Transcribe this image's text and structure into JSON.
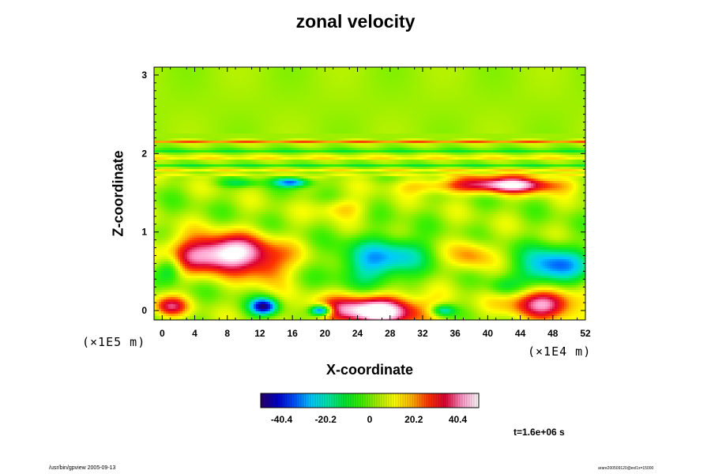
{
  "chart_data": {
    "type": "heatmap",
    "title": "zonal velocity",
    "xlabel": "X-coordinate",
    "ylabel": "Z-coordinate",
    "x_unit": "(×1E4 m)",
    "y_unit": "(×1E5 m)",
    "xlim": [
      -1,
      52
    ],
    "ylim": [
      -0.12,
      3.1
    ],
    "x_ticks": [
      "0",
      "4",
      "8",
      "12",
      "16",
      "20",
      "24",
      "28",
      "32",
      "36",
      "40",
      "44",
      "48",
      "52"
    ],
    "y_ticks": [
      "0",
      "1",
      "2",
      "3"
    ],
    "colorbar": {
      "range": [
        -50,
        50
      ],
      "ticks": [
        "-40.4",
        "-20.2",
        "0",
        "20.2",
        "40.4"
      ],
      "colors": [
        "#280064",
        "#0000c8",
        "#0050ff",
        "#00c8ff",
        "#00e6aa",
        "#00e632",
        "#3cf000",
        "#aaf000",
        "#ffff00",
        "#ffb400",
        "#ff3200",
        "#dc0032",
        "#ff96c8",
        "#ffffff"
      ]
    },
    "background_value": 3,
    "features": [
      {
        "x": 7.5,
        "z": 0.72,
        "rx": 6.5,
        "rz": 0.24,
        "value": 52
      },
      {
        "x": 26,
        "z": 0.0,
        "rx": 6.5,
        "rz": 0.2,
        "value": 52
      },
      {
        "x": 42.5,
        "z": 1.6,
        "rx": 6.5,
        "rz": 0.11,
        "value": 44
      },
      {
        "x": 47,
        "z": 0.1,
        "rx": 4.5,
        "rz": 0.2,
        "value": 40
      },
      {
        "x": 1,
        "z": 0.05,
        "rx": 2.2,
        "rz": 0.13,
        "value": 30
      },
      {
        "x": 33,
        "z": 1.58,
        "rx": 5,
        "rz": 0.1,
        "value": 12
      },
      {
        "x": 22,
        "z": 1.3,
        "rx": 3,
        "rz": 0.13,
        "value": 14
      },
      {
        "x": 38,
        "z": 0.7,
        "rx": 2.5,
        "rz": 0.2,
        "value": 18
      },
      {
        "x": 13,
        "z": 0.5,
        "rx": 2.5,
        "rz": 0.2,
        "value": 16
      },
      {
        "x": 48,
        "z": 0.55,
        "rx": 4,
        "rz": 0.25,
        "value": -38
      },
      {
        "x": 26,
        "z": 0.6,
        "rx": 4.5,
        "rz": 0.3,
        "value": -28
      },
      {
        "x": 12.5,
        "z": 0.05,
        "rx": 1.7,
        "rz": 0.11,
        "value": -48
      },
      {
        "x": 19.5,
        "z": 0.0,
        "rx": 1.3,
        "rz": 0.07,
        "value": -52
      },
      {
        "x": 16,
        "z": 1.63,
        "rx": 2.2,
        "rz": 0.06,
        "value": -34
      },
      {
        "x": 9.5,
        "z": 1.62,
        "rx": 2.5,
        "rz": 0.05,
        "value": -14
      },
      {
        "x": 34.5,
        "z": 0.0,
        "rx": 1.5,
        "rz": 0.08,
        "value": -30
      },
      {
        "x": 30,
        "z": 0.75,
        "rx": 3,
        "rz": 0.2,
        "value": -14
      },
      {
        "x": 1,
        "z": 0.55,
        "rx": 1.5,
        "rz": 0.18,
        "value": -20
      },
      {
        "x": 42,
        "z": 0.3,
        "rx": 2,
        "rz": 0.12,
        "value": -12
      }
    ],
    "bands": [
      {
        "z": 2.15,
        "hw": 0.02,
        "value": 20
      },
      {
        "z": 2.04,
        "hw": 0.015,
        "value": -20
      },
      {
        "z": 1.95,
        "hw": 0.02,
        "value": 14
      },
      {
        "z": 1.85,
        "hw": 0.018,
        "value": -12
      },
      {
        "z": 1.78,
        "hw": 0.015,
        "value": 12
      },
      {
        "z": 1.72,
        "hw": 0.02,
        "value": 6
      }
    ]
  },
  "annotations": {
    "timestamp": "t=1.6e+06 s",
    "footer_left": "/usr/bin/gpview 2005-09-13",
    "footer_right": "arare200509120@exl1x=15000"
  }
}
